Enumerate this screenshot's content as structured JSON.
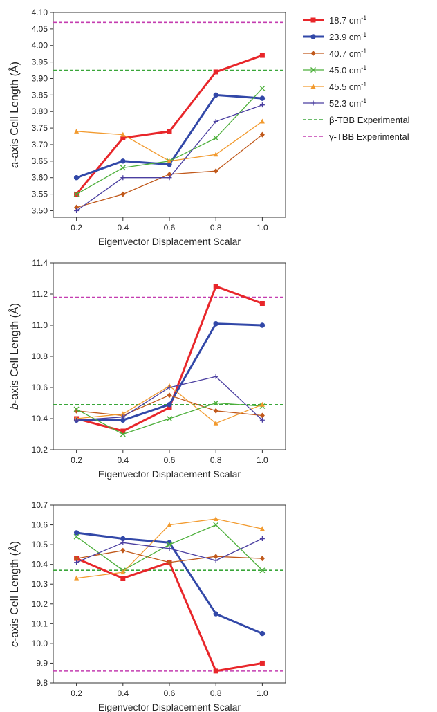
{
  "chart_data": [
    {
      "type": "line",
      "xlabel": "Eigenvector Displacement Scalar",
      "ylabel_italic": "a",
      "ylabel_rest": "-axis Cell Length (Å)",
      "x": [
        0.2,
        0.4,
        0.6,
        0.8,
        1.0
      ],
      "xlim": [
        0.1,
        1.1
      ],
      "ylim": [
        3.48,
        4.1
      ],
      "yticks": [
        3.5,
        3.55,
        3.6,
        3.65,
        3.7,
        3.75,
        3.8,
        3.85,
        3.9,
        3.95,
        4.0,
        4.05,
        4.1
      ],
      "ytick_decimals": 2,
      "series": [
        {
          "name": "18.7 cm-1",
          "values": [
            3.55,
            3.72,
            3.74,
            3.92,
            3.97
          ]
        },
        {
          "name": "23.9 cm-1",
          "values": [
            3.6,
            3.65,
            3.64,
            3.85,
            3.84
          ]
        },
        {
          "name": "40.7 cm-1",
          "values": [
            3.51,
            3.55,
            3.61,
            3.62,
            3.73
          ]
        },
        {
          "name": "45.0 cm-1",
          "values": [
            3.55,
            3.63,
            3.65,
            3.72,
            3.87
          ]
        },
        {
          "name": "45.5 cm-1",
          "values": [
            3.74,
            3.73,
            3.65,
            3.67,
            3.77
          ]
        },
        {
          "name": "52.3 cm-1",
          "values": [
            3.5,
            3.6,
            3.6,
            3.77,
            3.82
          ]
        }
      ],
      "reference_lines": [
        {
          "name": "β-TBB Experimental",
          "value": 3.925
        },
        {
          "name": "γ-TBB Experimental",
          "value": 4.07
        }
      ]
    },
    {
      "type": "line",
      "xlabel": "Eigenvector Displacement Scalar",
      "ylabel_italic": "b",
      "ylabel_rest": "-axis Cell Length (Å)",
      "x": [
        0.2,
        0.4,
        0.6,
        0.8,
        1.0
      ],
      "xlim": [
        0.1,
        1.1
      ],
      "ylim": [
        10.2,
        11.4
      ],
      "yticks": [
        10.2,
        10.4,
        10.6,
        10.8,
        11.0,
        11.2,
        11.4
      ],
      "ytick_decimals": 1,
      "series": [
        {
          "name": "18.7 cm-1",
          "values": [
            10.4,
            10.32,
            10.47,
            11.25,
            11.14
          ]
        },
        {
          "name": "23.9 cm-1",
          "values": [
            10.39,
            10.39,
            10.49,
            11.01,
            11.0
          ]
        },
        {
          "name": "40.7 cm-1",
          "values": [
            10.45,
            10.42,
            10.55,
            10.45,
            10.42
          ]
        },
        {
          "name": "45.0 cm-1",
          "values": [
            10.46,
            10.3,
            10.4,
            10.5,
            10.48
          ]
        },
        {
          "name": "45.5 cm-1",
          "values": [
            10.4,
            10.43,
            10.61,
            10.37,
            10.49
          ]
        },
        {
          "name": "52.3 cm-1",
          "values": [
            10.39,
            10.41,
            10.6,
            10.67,
            10.39
          ]
        }
      ],
      "reference_lines": [
        {
          "name": "β-TBB Experimental",
          "value": 10.49
        },
        {
          "name": "γ-TBB Experimental",
          "value": 11.18
        }
      ]
    },
    {
      "type": "line",
      "xlabel": "Eigenvector Displacement Scalar",
      "ylabel_italic": "c",
      "ylabel_rest": "-axis Cell Length (Å)",
      "x": [
        0.2,
        0.4,
        0.6,
        0.8,
        1.0
      ],
      "xlim": [
        0.1,
        1.1
      ],
      "ylim": [
        9.8,
        10.7
      ],
      "yticks": [
        9.8,
        9.9,
        10.0,
        10.1,
        10.2,
        10.3,
        10.4,
        10.5,
        10.6,
        10.7
      ],
      "ytick_decimals": 1,
      "series": [
        {
          "name": "18.7 cm-1",
          "values": [
            10.43,
            10.33,
            10.41,
            9.86,
            9.9
          ]
        },
        {
          "name": "23.9 cm-1",
          "values": [
            10.56,
            10.53,
            10.51,
            10.15,
            10.05
          ]
        },
        {
          "name": "40.7 cm-1",
          "values": [
            10.43,
            10.47,
            10.41,
            10.44,
            10.43
          ]
        },
        {
          "name": "45.0 cm-1",
          "values": [
            10.54,
            10.37,
            10.5,
            10.6,
            10.37
          ]
        },
        {
          "name": "45.5 cm-1",
          "values": [
            10.33,
            10.36,
            10.6,
            10.63,
            10.58
          ]
        },
        {
          "name": "52.3 cm-1",
          "values": [
            10.41,
            10.51,
            10.48,
            10.42,
            10.53
          ]
        }
      ],
      "reference_lines": [
        {
          "name": "β-TBB Experimental",
          "value": 10.37
        },
        {
          "name": "γ-TBB Experimental",
          "value": 9.86
        }
      ]
    }
  ],
  "legend": {
    "position": "top-right",
    "items": [
      {
        "number": "18.7",
        "unit": " cm",
        "sup": "-1",
        "color": "#e8262a",
        "marker": "square",
        "weight": "heavy"
      },
      {
        "number": "23.9",
        "unit": " cm",
        "sup": "-1",
        "color": "#3248a8",
        "marker": "circle",
        "weight": "heavy"
      },
      {
        "number": "40.7",
        "unit": " cm",
        "sup": "-1",
        "color": "#c0581a",
        "marker": "diamond",
        "weight": "light"
      },
      {
        "number": "45.0",
        "unit": " cm",
        "sup": "-1",
        "color": "#4caf3a",
        "marker": "x",
        "weight": "light"
      },
      {
        "number": "45.5",
        "unit": " cm",
        "sup": "-1",
        "color": "#f29a2e",
        "marker": "triangle",
        "weight": "light"
      },
      {
        "number": "52.3",
        "unit": " cm",
        "sup": "-1",
        "color": "#4a3ea0",
        "marker": "plus",
        "weight": "light"
      },
      {
        "label": "β-TBB Experimental",
        "color": "#3aa63a",
        "marker": "dash"
      },
      {
        "label": "γ-TBB Experimental",
        "color": "#c43db0",
        "marker": "dash"
      }
    ]
  }
}
